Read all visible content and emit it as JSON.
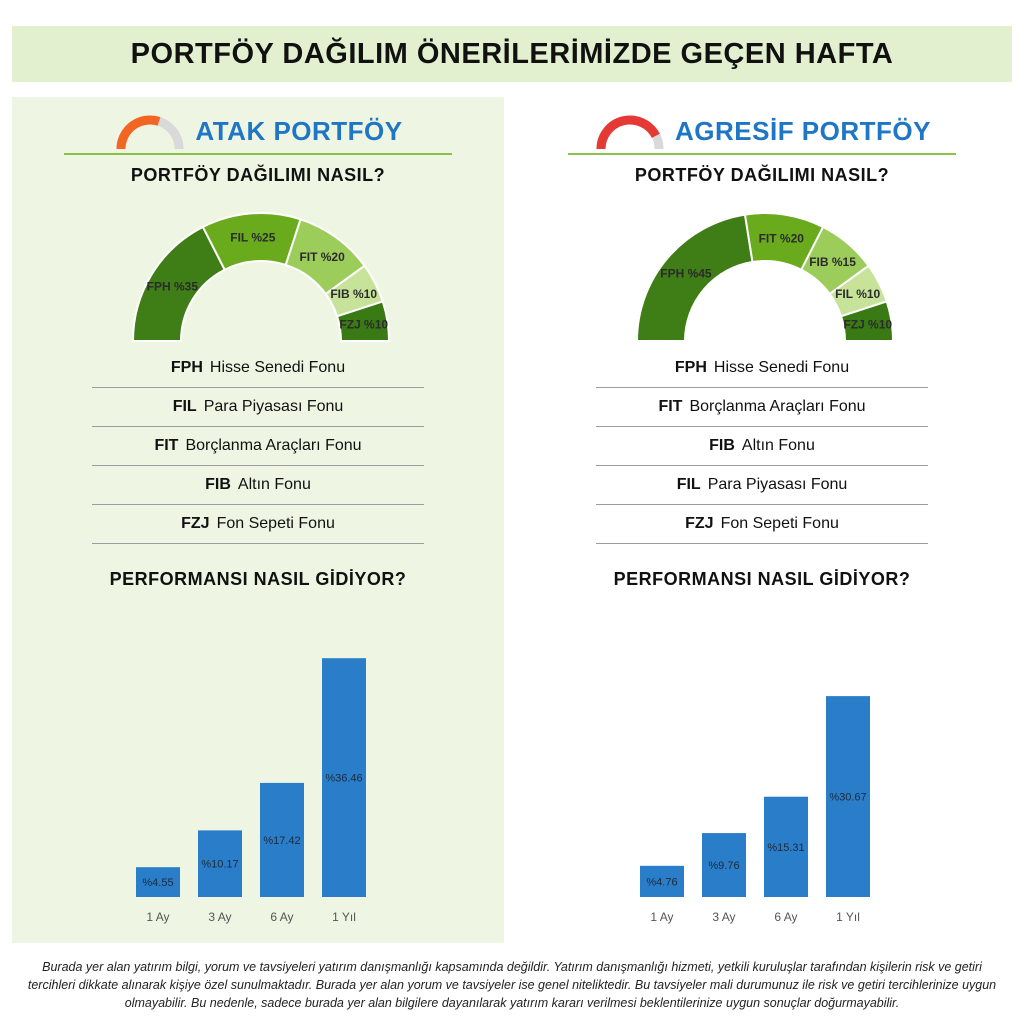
{
  "page": {
    "title": "PORTFÖY DAĞILIM ÖNERİLERİMİZDE GEÇEN HAFTA",
    "disclaimer": "Burada yer alan yatırım bilgi, yorum ve tavsiyeleri yatırım danışmanlığı kapsamında değildir. Yatırım danışmanlığı hizmeti, yetkili kuruluşlar tarafından kişilerin risk ve getiri tercihleri dikkate alınarak kişiye özel sunulmaktadır. Burada yer alan yorum ve tavsiyeler ise genel niteliktedir. Bu tavsiyeler mali durumunuz ile risk ve getiri tercihlerinize uygun olmayabilir. Bu nedenle, sadece burada yer alan bilgilere dayanılarak yatırım kararı verilmesi beklentilerinize uygun sonuçlar doğurmayabilir."
  },
  "colors": {
    "banner_bg": "#e3f0cf",
    "panel_left_bg": "#eef6e3",
    "heading_blue": "#1e76c4",
    "bar_blue": "#2a7dc9",
    "divider_green": "#8bc34a",
    "atak_icon": "#f26522",
    "agresif_icon": "#e53935",
    "icon_track": "#d9d9d9"
  },
  "panels": [
    {
      "name": "ATAK PORTFÖY",
      "icon": "gauge-icon",
      "icon_color": "#f26522",
      "icon_fill_fraction": 0.6,
      "allocation_title": "PORTFÖY DAĞILIMI NASIL?",
      "performance_title": "PERFORMANSI NASIL GİDİYOR?",
      "legend": [
        {
          "code": "FPH",
          "label": "Hisse Senedi Fonu"
        },
        {
          "code": "FIL",
          "label": "Para Piyasası Fonu"
        },
        {
          "code": "FIT",
          "label": "Borçlanma Araçları Fonu"
        },
        {
          "code": "FIB",
          "label": "Altın Fonu"
        },
        {
          "code": "FZJ",
          "label": "Fon Sepeti Fonu"
        }
      ]
    },
    {
      "name": "AGRESİF PORTFÖY",
      "icon": "gauge-icon",
      "icon_color": "#e53935",
      "icon_fill_fraction": 0.85,
      "allocation_title": "PORTFÖY DAĞILIMI NASIL?",
      "performance_title": "PERFORMANSI NASIL GİDİYOR?",
      "legend": [
        {
          "code": "FPH",
          "label": "Hisse Senedi Fonu"
        },
        {
          "code": "FIT",
          "label": "Borçlanma Araçları Fonu"
        },
        {
          "code": "FIB",
          "label": "Altın Fonu"
        },
        {
          "code": "FIL",
          "label": "Para Piyasası Fonu"
        },
        {
          "code": "FZJ",
          "label": "Fon Sepeti Fonu"
        }
      ]
    }
  ],
  "chart_data": [
    {
      "type": "pie",
      "variant": "half-donut",
      "panel": "ATAK PORTFÖY",
      "slices": [
        {
          "label": "FPH %35",
          "value": 35,
          "color": "#3f7d16"
        },
        {
          "label": "FIL %25",
          "value": 25,
          "color": "#6aab1d"
        },
        {
          "label": "FIT %20",
          "value": 20,
          "color": "#9ccc5a"
        },
        {
          "label": "FIB %10",
          "value": 10,
          "color": "#c7e39a"
        },
        {
          "label": "FZJ %10",
          "value": 10,
          "color": "#3a7a14"
        }
      ]
    },
    {
      "type": "bar",
      "panel": "ATAK PORTFÖY",
      "categories": [
        "1 Ay",
        "3 Ay",
        "6 Ay",
        "1 Yıl"
      ],
      "values": [
        4.55,
        10.17,
        17.42,
        36.46
      ],
      "data_labels": [
        "%4.55",
        "%10.17",
        "%17.42",
        "%36.46"
      ],
      "ylim": [
        0,
        40
      ],
      "color": "#2a7dc9",
      "grid": false
    },
    {
      "type": "pie",
      "variant": "half-donut",
      "panel": "AGRESİF PORTFÖY",
      "slices": [
        {
          "label": "FPH %45",
          "value": 45,
          "color": "#3f7d16"
        },
        {
          "label": "FIT %20",
          "value": 20,
          "color": "#6aab1d"
        },
        {
          "label": "FIB %15",
          "value": 15,
          "color": "#9ccc5a"
        },
        {
          "label": "FIL %10",
          "value": 10,
          "color": "#c7e39a"
        },
        {
          "label": "FZJ %10",
          "value": 10,
          "color": "#3a7a14"
        }
      ]
    },
    {
      "type": "bar",
      "panel": "AGRESİF PORTFÖY",
      "categories": [
        "1 Ay",
        "3 Ay",
        "6 Ay",
        "1 Yıl"
      ],
      "values": [
        4.76,
        9.76,
        15.31,
        30.67
      ],
      "data_labels": [
        "%4.76",
        "%9.76",
        "%15.31",
        "%30.67"
      ],
      "ylim": [
        0,
        40
      ],
      "color": "#2a7dc9",
      "grid": false
    }
  ]
}
